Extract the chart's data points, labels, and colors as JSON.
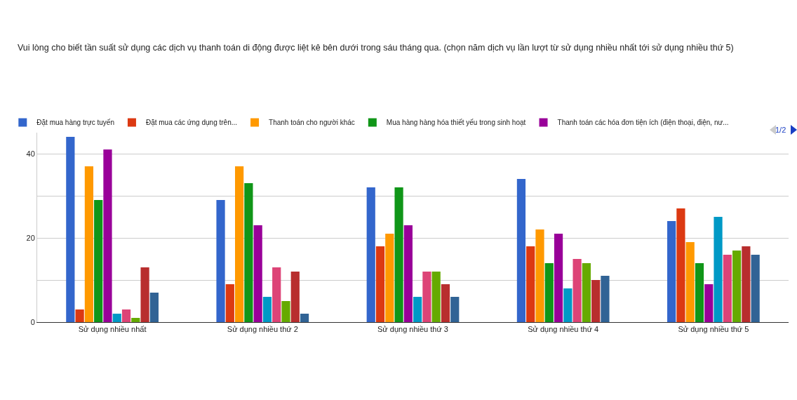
{
  "chart_data": {
    "type": "bar",
    "title": "Vui lòng cho biết tần suất sử dụng các dịch vụ thanh toán di động được liệt kê bên dưới trong sáu tháng qua. (chọn năm dịch vụ lần lượt từ sử dụng nhiều nhất tới sử dụng nhiều thứ 5)",
    "categories": [
      "Sử dụng nhiều nhất",
      "Sử dụng nhiều thứ 2",
      "Sử dụng nhiều thứ 3",
      "Sử dụng nhiều thứ 4",
      "Sử dụng nhiều thứ 5"
    ],
    "series": [
      {
        "name": "Đặt mua hàng trực tuyến",
        "color": "#3366cc",
        "values": [
          44,
          29,
          32,
          34,
          24
        ]
      },
      {
        "name": "Đặt mua các ứng dụng trên...",
        "color": "#dc3912",
        "values": [
          3,
          9,
          18,
          18,
          27
        ]
      },
      {
        "name": "Thanh toán cho người khác",
        "color": "#ff9900",
        "values": [
          37,
          37,
          21,
          22,
          19
        ]
      },
      {
        "name": "Mua hàng hàng hóa thiết yếu trong sinh hoạt",
        "color": "#109618",
        "values": [
          29,
          33,
          32,
          14,
          14
        ]
      },
      {
        "name": "Thanh toán các hóa đơn tiện ích (điện thoại, điện, nư...",
        "color": "#990099",
        "values": [
          41,
          23,
          23,
          21,
          9
        ]
      },
      {
        "color": "#0099c6",
        "values": [
          2,
          6,
          6,
          8,
          25
        ]
      },
      {
        "color": "#dd4477",
        "values": [
          3,
          13,
          12,
          15,
          16
        ]
      },
      {
        "color": "#66aa00",
        "values": [
          1,
          5,
          12,
          14,
          17
        ]
      },
      {
        "color": "#b82e2e",
        "values": [
          13,
          12,
          9,
          10,
          18
        ]
      },
      {
        "color": "#316395",
        "values": [
          7,
          2,
          6,
          11,
          16
        ]
      }
    ],
    "ylim": [
      0,
      45
    ],
    "yticks": [
      0,
      {
        "value": 10,
        "label": null
      },
      20,
      {
        "value": 30,
        "label": null
      },
      40
    ],
    "grid": "y",
    "legend": "top",
    "annotations": [
      "1/2"
    ]
  }
}
